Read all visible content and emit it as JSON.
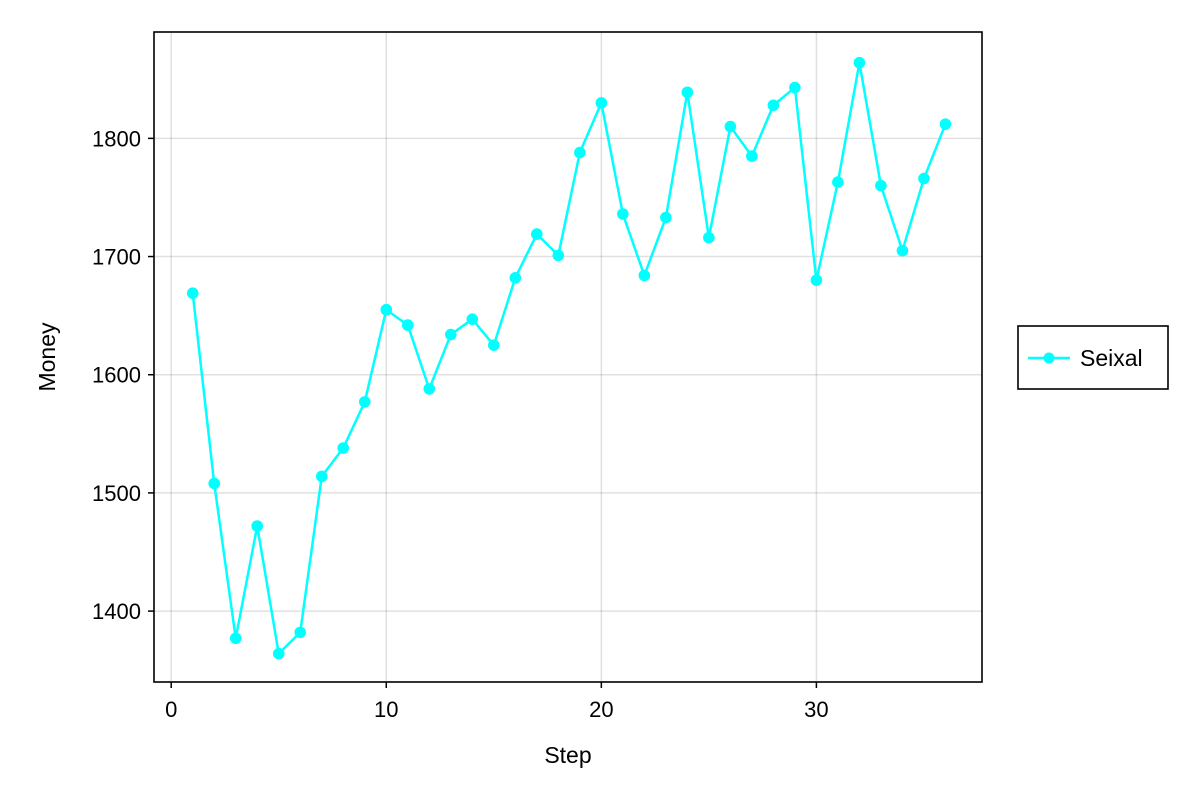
{
  "chart_data": {
    "type": "line",
    "xlabel": "Step",
    "ylabel": "Money",
    "xlim": [
      -0.8,
      37.7
    ],
    "ylim": [
      1340,
      1890
    ],
    "xticks": [
      0,
      10,
      20,
      30
    ],
    "yticks": [
      1400,
      1500,
      1600,
      1700,
      1800
    ],
    "grid": true,
    "legend_position": "right",
    "series": [
      {
        "name": "Seixal",
        "color": "#00FFFF",
        "x": [
          1,
          2,
          3,
          4,
          5,
          6,
          7,
          8,
          9,
          10,
          11,
          12,
          13,
          14,
          15,
          16,
          17,
          18,
          19,
          20,
          21,
          22,
          23,
          24,
          25,
          26,
          27,
          28,
          29,
          30,
          31,
          32,
          33,
          34,
          35,
          36
        ],
        "y": [
          1669,
          1508,
          1377,
          1472,
          1364,
          1382,
          1514,
          1538,
          1577,
          1655,
          1642,
          1588,
          1634,
          1647,
          1625,
          1682,
          1719,
          1701,
          1788,
          1830,
          1736,
          1684,
          1733,
          1839,
          1716,
          1810,
          1785,
          1828,
          1843,
          1680,
          1763,
          1864,
          1760,
          1705,
          1766,
          1812
        ]
      }
    ]
  }
}
